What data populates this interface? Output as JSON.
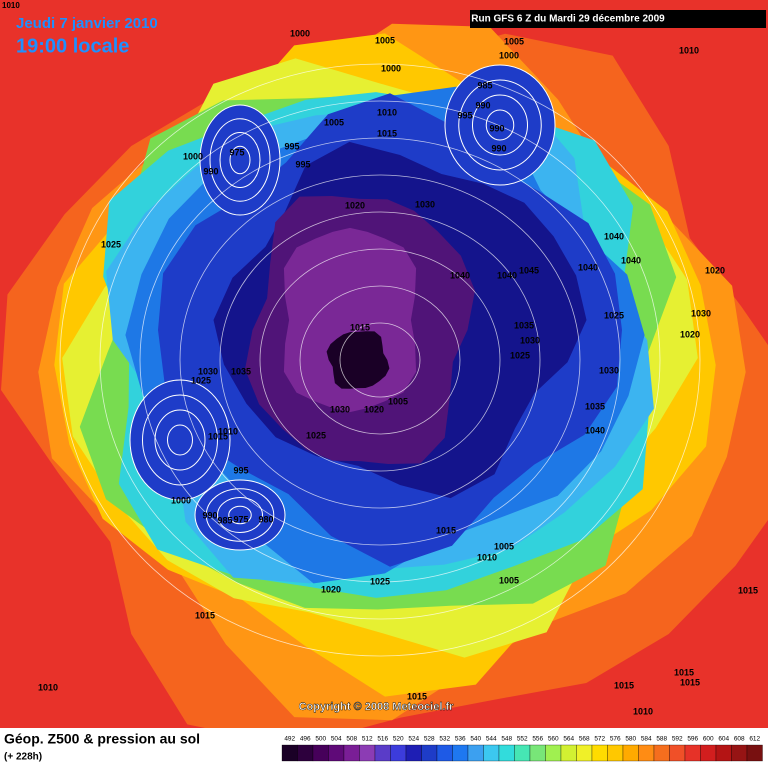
{
  "header": {
    "corner": "1010",
    "date": "Jeudi 7 janvier 2010",
    "time": "19:00 locale",
    "run": "Run GFS 6 Z du Mardi 29 décembre 2009"
  },
  "map": {
    "copyright": "Copyright © 2008 Meteociel.fr",
    "isobar_labels": [
      "1000",
      "1005",
      "1005",
      "1000",
      "1010",
      "1000",
      "985",
      "990",
      "995",
      "1010",
      "1005",
      "1015",
      "990",
      "990",
      "975",
      "995",
      "1000",
      "995",
      "990",
      "1020",
      "1030",
      "1025",
      "1040",
      "1040",
      "1040",
      "1040",
      "1040",
      "1045",
      "1020",
      "1025",
      "1030",
      "1015",
      "1035",
      "1030",
      "1020",
      "1025",
      "1030",
      "1035",
      "1030",
      "1025",
      "1005",
      "1030",
      "1020",
      "1035",
      "1040",
      "1010",
      "1025",
      "1015",
      "995",
      "1000",
      "990",
      "985",
      "975",
      "980",
      "1015",
      "1005",
      "1010",
      "1005",
      "1025",
      "1020",
      "1015",
      "1015",
      "1010",
      "1015",
      "1015",
      "1015",
      "1015",
      "1010"
    ]
  },
  "footer": {
    "title": "Géop. Z500 & pression au sol",
    "lead": "(+ 228h)",
    "scale": [
      492,
      496,
      500,
      504,
      508,
      512,
      516,
      520,
      524,
      528,
      532,
      536,
      540,
      544,
      548,
      552,
      556,
      560,
      564,
      568,
      572,
      576,
      580,
      584,
      588,
      592,
      596,
      600,
      604,
      608,
      612
    ]
  }
}
